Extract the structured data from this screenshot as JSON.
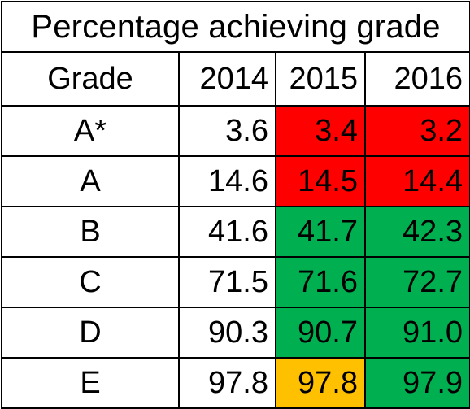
{
  "title": "Percentage achieving grade",
  "columns": [
    "Grade",
    "2014",
    "2015",
    "2016"
  ],
  "colors": {
    "red": "#ff0000",
    "green": "#00b050",
    "amber": "#ffc000",
    "white": "#ffffff"
  },
  "rows": [
    {
      "grade": "A*",
      "y2014": "3.6",
      "y2015": "3.4",
      "y2016": "3.2",
      "c2015": "#ff0000",
      "c2016": "#ff0000"
    },
    {
      "grade": "A",
      "y2014": "14.6",
      "y2015": "14.5",
      "y2016": "14.4",
      "c2015": "#ff0000",
      "c2016": "#ff0000"
    },
    {
      "grade": "B",
      "y2014": "41.6",
      "y2015": "41.7",
      "y2016": "42.3",
      "c2015": "#00b050",
      "c2016": "#00b050"
    },
    {
      "grade": "C",
      "y2014": "71.5",
      "y2015": "71.6",
      "y2016": "72.7",
      "c2015": "#00b050",
      "c2016": "#00b050"
    },
    {
      "grade": "D",
      "y2014": "90.3",
      "y2015": "90.7",
      "y2016": "91.0",
      "c2015": "#00b050",
      "c2016": "#00b050"
    },
    {
      "grade": "E",
      "y2014": "97.8",
      "y2015": "97.8",
      "y2016": "97.9",
      "c2015": "#ffc000",
      "c2016": "#00b050"
    }
  ]
}
